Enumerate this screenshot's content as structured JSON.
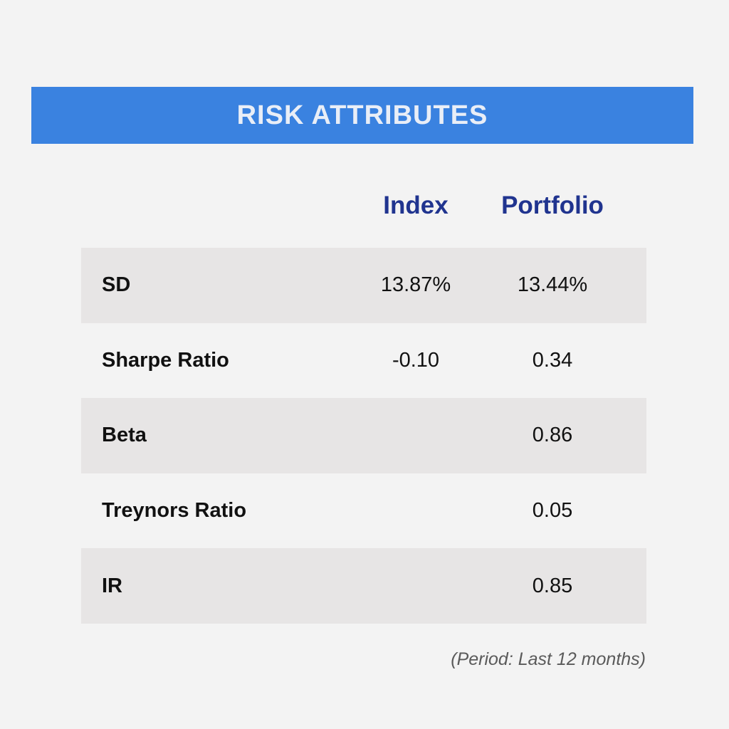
{
  "title": "RISK ATTRIBUTES",
  "columns": {
    "index": "Index",
    "portfolio": "Portfolio"
  },
  "rows": [
    {
      "label": "SD",
      "index": "13.87%",
      "portfolio": "13.44%"
    },
    {
      "label": "Sharpe Ratio",
      "index": "-0.10",
      "portfolio": "0.34"
    },
    {
      "label": "Beta",
      "index": "",
      "portfolio": "0.86"
    },
    {
      "label": "Treynors Ratio",
      "index": "",
      "portfolio": "0.05"
    },
    {
      "label": "IR",
      "index": "",
      "portfolio": "0.85"
    }
  ],
  "footnote": "(Period: Last 12 months)",
  "colors": {
    "banner": "#3a82e0",
    "header_text": "#20348f",
    "row_shade": "#e7e5e5",
    "background": "#f3f3f3"
  }
}
